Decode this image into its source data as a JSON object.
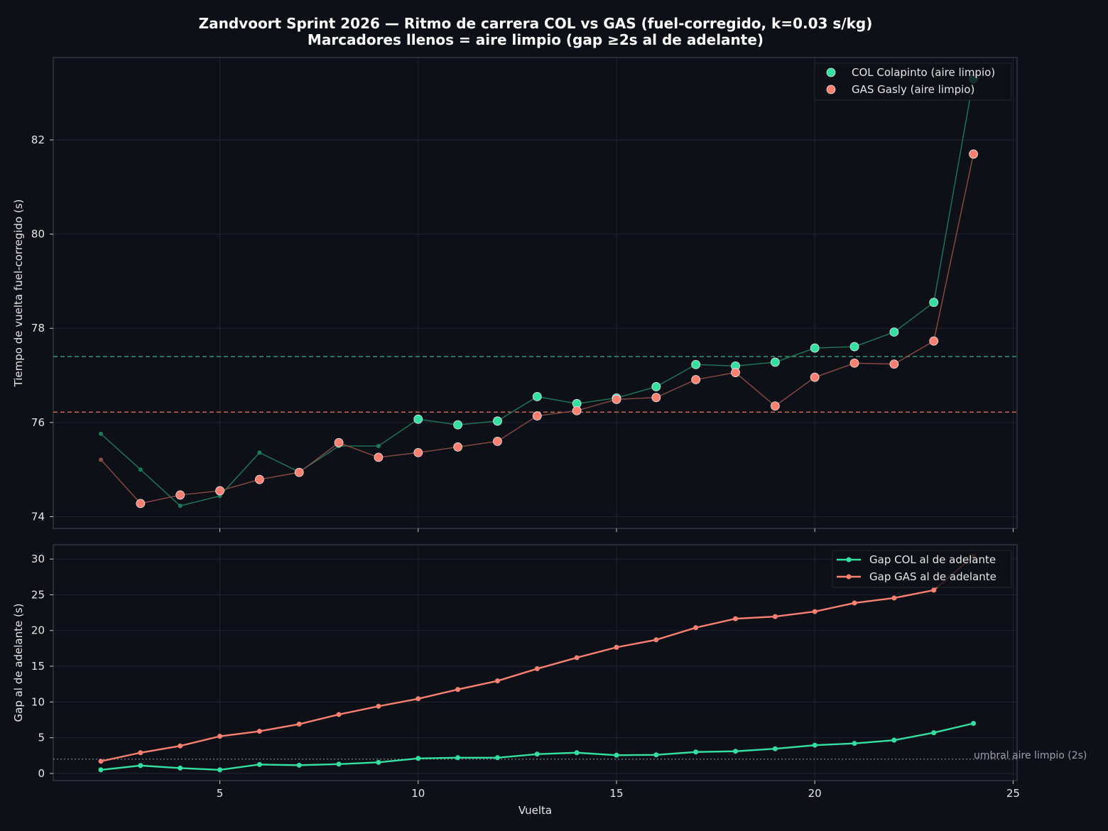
{
  "title_line1": "Zandvoort Sprint 2026 — Ritmo de carrera COL vs GAS (fuel-corregido, k=0.03 s/kg)",
  "title_line2": "Marcadores llenos = aire limpio (gap ≥2s al de adelante)",
  "colors": {
    "background": "#0d1017",
    "col": "#34e0a1",
    "gas": "#fa8072",
    "col_line": "#1f7a5a",
    "gas_line": "#8a4a46",
    "grid": "#1e232c",
    "spine": "#3a3f48"
  },
  "chart_data": [
    {
      "type": "line",
      "xlabel": "",
      "ylabel": "Tiempo de vuelta fuel-corregido (s)",
      "xlim": [
        0.8,
        25.1
      ],
      "ylim": [
        73.75,
        83.75
      ],
      "yticks": [
        74,
        76,
        78,
        80,
        82
      ],
      "xticks": [
        5,
        10,
        15,
        20,
        25
      ],
      "grid": true,
      "legend_position": "top-right",
      "x": [
        2,
        3,
        4,
        5,
        6,
        7,
        8,
        9,
        10,
        11,
        12,
        13,
        14,
        15,
        16,
        17,
        18,
        19,
        20,
        21,
        22,
        23,
        24
      ],
      "series": [
        {
          "name": "COL Colapinto (aire limpio)",
          "values": [
            75.76,
            75.0,
            74.23,
            74.44,
            75.36,
            74.95,
            75.5,
            75.5,
            76.07,
            75.95,
            76.03,
            76.55,
            76.4,
            76.52,
            76.76,
            77.23,
            77.2,
            77.28,
            77.58,
            77.61,
            77.92,
            78.55,
            83.3
          ],
          "clean_air": [
            false,
            false,
            false,
            false,
            false,
            false,
            false,
            false,
            true,
            true,
            true,
            true,
            true,
            true,
            true,
            true,
            true,
            true,
            true,
            true,
            true,
            true,
            true
          ],
          "mean_reference": 77.4
        },
        {
          "name": "GAS Gasly (aire limpio)",
          "values": [
            75.21,
            74.28,
            74.46,
            74.55,
            74.79,
            74.94,
            75.57,
            75.26,
            75.36,
            75.48,
            75.6,
            76.14,
            76.25,
            76.49,
            76.53,
            76.91,
            77.06,
            76.35,
            76.96,
            77.26,
            77.24,
            77.73,
            81.7
          ],
          "clean_air": [
            false,
            true,
            true,
            true,
            true,
            true,
            true,
            true,
            true,
            true,
            true,
            true,
            true,
            true,
            true,
            true,
            true,
            true,
            true,
            true,
            true,
            true,
            true
          ],
          "mean_reference": 76.22
        }
      ]
    },
    {
      "type": "line",
      "xlabel": "Vuelta",
      "ylabel": "Gap al de adelante (s)",
      "xlim": [
        0.8,
        25.1
      ],
      "ylim": [
        -1,
        32
      ],
      "yticks": [
        0,
        5,
        10,
        15,
        20,
        25,
        30
      ],
      "xticks": [
        5,
        10,
        15,
        20,
        25
      ],
      "grid": true,
      "legend_position": "top-right",
      "threshold": 2,
      "threshold_label": "umbral aire limpio (2s)",
      "x": [
        2,
        3,
        4,
        5,
        6,
        7,
        8,
        9,
        10,
        11,
        12,
        13,
        14,
        15,
        16,
        17,
        18,
        19,
        20,
        21,
        22,
        23,
        24
      ],
      "series": [
        {
          "name": "Gap COL al de adelante",
          "values": [
            0.5,
            1.1,
            0.75,
            0.5,
            1.25,
            1.15,
            1.3,
            1.55,
            2.1,
            2.2,
            2.2,
            2.7,
            2.9,
            2.55,
            2.6,
            3.0,
            3.1,
            3.45,
            3.95,
            4.2,
            4.65,
            5.7,
            7.0
          ]
        },
        {
          "name": "Gap GAS al de adelante",
          "values": [
            1.7,
            2.9,
            3.85,
            5.2,
            5.9,
            6.9,
            8.25,
            9.4,
            10.45,
            11.75,
            12.95,
            14.65,
            16.2,
            17.65,
            18.7,
            20.4,
            21.65,
            21.95,
            22.65,
            23.85,
            24.55,
            25.65,
            30.4
          ]
        }
      ]
    }
  ]
}
